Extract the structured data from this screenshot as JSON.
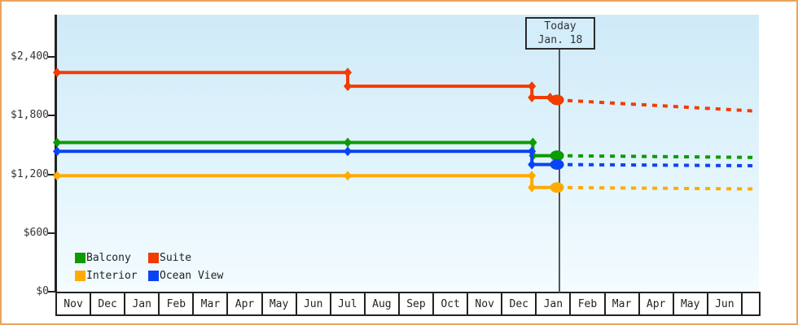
{
  "chart_data": {
    "type": "line",
    "title": "",
    "y_axis": {
      "min": 0,
      "max": 2400,
      "ticks": [
        {
          "label": "$2,400",
          "value": 2400
        },
        {
          "label": "$1,800",
          "value": 1800
        },
        {
          "label": "$1,200",
          "value": 1200
        },
        {
          "label": "$600",
          "value": 600
        },
        {
          "label": "$0",
          "value": 0
        }
      ]
    },
    "x_axis": {
      "month_labels": [
        "Nov",
        "Dec",
        "Jan",
        "Feb",
        "Mar",
        "Apr",
        "May",
        "Jun",
        "Jul",
        "Aug",
        "Sep",
        "Oct",
        "Nov",
        "Dec",
        "Jan",
        "Feb",
        "Mar",
        "Apr",
        "May",
        "Jun"
      ]
    },
    "today_annotation": {
      "line1": "Today",
      "line2": "Jan. 18",
      "month_position": 14.5
    },
    "series": [
      {
        "name": "Suite",
        "color": "#f23c00",
        "history": [
          [
            0,
            2240
          ],
          [
            8.43,
            2240
          ],
          [
            8.43,
            2100
          ],
          [
            13.77,
            2100
          ],
          [
            13.77,
            1985
          ],
          [
            14.3,
            1985
          ],
          [
            14.5,
            1960
          ]
        ],
        "markers": [
          [
            0,
            2240
          ],
          [
            8.43,
            2240
          ],
          [
            8.43,
            2100
          ],
          [
            13.77,
            2100
          ],
          [
            13.77,
            1985
          ],
          [
            14.3,
            1985
          ]
        ],
        "today_value": 1960,
        "forecast": [
          [
            14.5,
            1960
          ],
          [
            20.3,
            1845
          ]
        ]
      },
      {
        "name": "Balcony",
        "color": "#0c9b00",
        "history": [
          [
            0,
            1525
          ],
          [
            8.43,
            1525
          ],
          [
            13.8,
            1525
          ],
          [
            13.8,
            1390
          ],
          [
            14.5,
            1390
          ]
        ],
        "markers": [
          [
            0,
            1525
          ],
          [
            8.43,
            1525
          ],
          [
            13.8,
            1525
          ],
          [
            13.8,
            1390
          ]
        ],
        "today_value": 1390,
        "forecast": [
          [
            14.5,
            1390
          ],
          [
            20.3,
            1372
          ]
        ]
      },
      {
        "name": "Ocean View",
        "color": "#0a44f2",
        "history": [
          [
            0,
            1435
          ],
          [
            8.43,
            1435
          ],
          [
            13.77,
            1435
          ],
          [
            13.77,
            1300
          ],
          [
            14.5,
            1300
          ]
        ],
        "markers": [
          [
            0,
            1435
          ],
          [
            8.43,
            1435
          ],
          [
            13.77,
            1435
          ],
          [
            13.77,
            1300
          ]
        ],
        "today_value": 1300,
        "forecast": [
          [
            14.5,
            1300
          ],
          [
            20.3,
            1287
          ]
        ]
      },
      {
        "name": "Interior",
        "color": "#ffab00",
        "history": [
          [
            0,
            1185
          ],
          [
            8.43,
            1185
          ],
          [
            13.77,
            1185
          ],
          [
            13.77,
            1065
          ],
          [
            14.5,
            1065
          ]
        ],
        "markers": [
          [
            0,
            1185
          ],
          [
            8.43,
            1185
          ],
          [
            13.77,
            1185
          ],
          [
            13.77,
            1065
          ]
        ],
        "today_value": 1065,
        "forecast": [
          [
            14.5,
            1065
          ],
          [
            20.3,
            1050
          ]
        ]
      }
    ],
    "legend": {
      "rows": [
        [
          "Balcony",
          "Suite"
        ],
        [
          "Interior",
          "Ocean View"
        ]
      ]
    }
  },
  "colors": {
    "frame_border": "#e9a55c",
    "plot_gradient_top": "#cfeaf8",
    "plot_gradient_bottom": "#f4fcff",
    "axis": "#222222",
    "today_line": "#555555",
    "annotation_box_bg": "#d3edfa",
    "text": "#333333"
  }
}
